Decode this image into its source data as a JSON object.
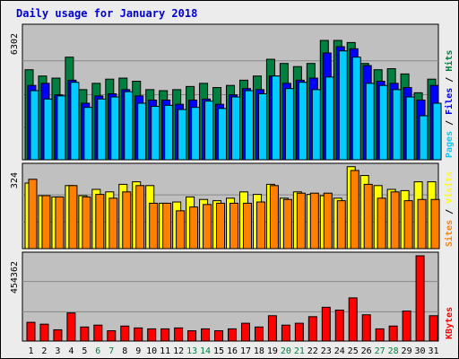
{
  "title": "Daily usage for January 2018",
  "colors": {
    "hits": "#008040",
    "files": "#0000ff",
    "pages": "#00ccff",
    "visits": "#ffff00",
    "sites": "#ff8000",
    "kbytes": "#ff0000",
    "weekend_label": "#008040"
  },
  "chart_data": [
    {
      "type": "bar",
      "name": "hits-files-pages",
      "ylabel_max": "6302",
      "ymax": 6302,
      "legend": [
        "Pages",
        "Files",
        "Hits"
      ],
      "categories": [
        "1",
        "2",
        "3",
        "4",
        "5",
        "6",
        "7",
        "8",
        "9",
        "10",
        "11",
        "12",
        "13",
        "14",
        "15",
        "16",
        "17",
        "18",
        "19",
        "20",
        "21",
        "22",
        "23",
        "24",
        "25",
        "26",
        "27",
        "28",
        "29",
        "30",
        "31"
      ],
      "series": [
        {
          "name": "Hits",
          "values": [
            4300,
            4000,
            3900,
            4900,
            3350,
            3650,
            3850,
            3900,
            3750,
            3350,
            3300,
            3350,
            3500,
            3650,
            3450,
            3550,
            3800,
            4000,
            4800,
            4600,
            4450,
            4600,
            5700,
            5700,
            5600,
            4600,
            4300,
            4350,
            4100,
            3200,
            3850
          ]
        },
        {
          "name": "Files",
          "values": [
            3550,
            3650,
            3100,
            3800,
            2700,
            3050,
            3150,
            3350,
            3050,
            2850,
            2850,
            2650,
            2850,
            2900,
            2650,
            3100,
            3400,
            3350,
            4000,
            3650,
            3800,
            3900,
            5100,
            5400,
            5300,
            4500,
            3750,
            3650,
            3450,
            2850,
            3550
          ]
        },
        {
          "name": "Pages",
          "values": [
            3300,
            2900,
            3050,
            3700,
            2500,
            2900,
            3000,
            3250,
            2700,
            2550,
            2600,
            2400,
            2500,
            2800,
            2450,
            3000,
            3300,
            3150,
            4000,
            3400,
            3700,
            3350,
            3950,
            5200,
            4900,
            3650,
            3550,
            3350,
            3000,
            2100,
            2700
          ]
        }
      ]
    },
    {
      "type": "bar",
      "name": "visits-sites",
      "ylabel_max": "324",
      "ymax": 324,
      "legend": [
        "Sites",
        "Visits"
      ],
      "categories": [
        "1",
        "2",
        "3",
        "4",
        "5",
        "6",
        "7",
        "8",
        "9",
        "10",
        "11",
        "12",
        "13",
        "14",
        "15",
        "16",
        "17",
        "18",
        "19",
        "20",
        "21",
        "22",
        "23",
        "24",
        "25",
        "26",
        "27",
        "28",
        "29",
        "30",
        "31"
      ],
      "series": [
        {
          "name": "Visits",
          "values": [
            260,
            210,
            205,
            250,
            210,
            235,
            225,
            255,
            265,
            250,
            180,
            185,
            205,
            195,
            190,
            200,
            225,
            215,
            255,
            200,
            225,
            215,
            210,
            200,
            325,
            290,
            250,
            235,
            230,
            265,
            265
          ]
        },
        {
          "name": "Sites",
          "values": [
            275,
            210,
            205,
            250,
            205,
            215,
            200,
            225,
            250,
            180,
            180,
            150,
            165,
            175,
            180,
            180,
            180,
            185,
            250,
            195,
            220,
            220,
            220,
            190,
            310,
            255,
            200,
            225,
            190,
            195,
            195
          ]
        }
      ]
    },
    {
      "type": "bar",
      "name": "kbytes",
      "ylabel_max": "454362",
      "ymax": 454362,
      "legend": [
        "KBytes"
      ],
      "categories": [
        "1",
        "2",
        "3",
        "4",
        "5",
        "6",
        "7",
        "8",
        "9",
        "10",
        "11",
        "12",
        "13",
        "14",
        "15",
        "16",
        "17",
        "18",
        "19",
        "20",
        "21",
        "22",
        "23",
        "24",
        "25",
        "26",
        "27",
        "28",
        "29",
        "30",
        "31"
      ],
      "series": [
        {
          "name": "KBytes",
          "values": [
            100000,
            90000,
            60000,
            150000,
            75000,
            85000,
            55000,
            80000,
            70000,
            65000,
            65000,
            70000,
            55000,
            65000,
            55000,
            65000,
            95000,
            75000,
            135000,
            85000,
            95000,
            130000,
            180000,
            165000,
            230000,
            140000,
            65000,
            80000,
            160000,
            454362,
            135000
          ]
        }
      ]
    }
  ],
  "weekend_days": [
    "6",
    "7",
    "13",
    "14",
    "20",
    "21",
    "27",
    "28"
  ]
}
